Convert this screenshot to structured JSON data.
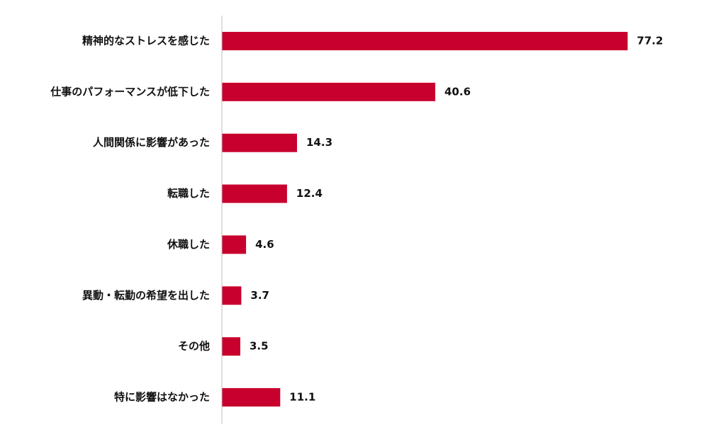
{
  "chart_data": {
    "type": "bar",
    "orientation": "horizontal",
    "categories": [
      "精神的なストレスを感じた",
      "仕事のパフォーマンスが低下した",
      "人間関係に影響があった",
      "転職した",
      "休職した",
      "異動・転勤の希望を出した",
      "その他",
      "特に影響はなかった"
    ],
    "values": [
      77.2,
      40.6,
      14.3,
      12.4,
      4.6,
      3.7,
      3.5,
      11.1
    ],
    "value_labels": [
      "77.2",
      "40.6",
      "14.3",
      "12.4",
      "4.6",
      "3.7",
      "3.5",
      "11.1"
    ],
    "title": "",
    "xlabel": "",
    "ylabel": "",
    "xlim": [
      0,
      80
    ],
    "grid": false,
    "legend": "none",
    "colors": {
      "bar": "#C8002D",
      "axis": "#BFBFBF",
      "text": "#111111"
    }
  }
}
